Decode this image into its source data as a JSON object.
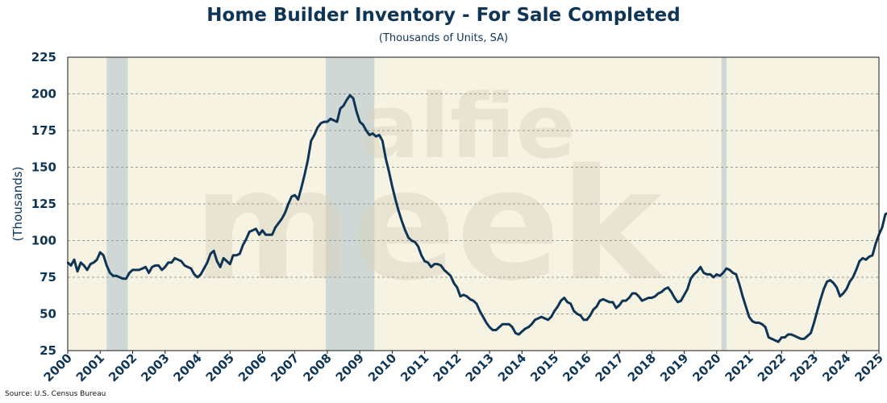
{
  "chart_data": {
    "type": "line",
    "title": "Home Builder Inventory - For Sale Completed",
    "subtitle": "(Thousands of Units, SA)",
    "ylabel": "(Thousands)",
    "xlabel": "",
    "source": "Source: U.S. Census Bureau",
    "watermark": [
      "alfie",
      "meek"
    ],
    "ylim": [
      25,
      225
    ],
    "yticks": [
      25,
      50,
      75,
      100,
      125,
      150,
      175,
      200,
      225
    ],
    "xlim": [
      2000.0,
      2025.0
    ],
    "xticks": [
      "2000",
      "2001",
      "2002",
      "2003",
      "2004",
      "2005",
      "2006",
      "2007",
      "2008",
      "2009",
      "2010",
      "2011",
      "2012",
      "2013",
      "2014",
      "2015",
      "2016",
      "2017",
      "2018",
      "2019",
      "2020",
      "2021",
      "2022",
      "2023",
      "2024",
      "2025"
    ],
    "grid": "horizontal-dashed",
    "recessions": [
      [
        2001.2,
        2001.85
      ],
      [
        2007.95,
        2009.45
      ],
      [
        2020.15,
        2020.3
      ]
    ],
    "series": [
      {
        "color": "#0f3556",
        "points": [
          [
            2000.0,
            85
          ],
          [
            2000.1,
            83
          ],
          [
            2000.2,
            87
          ],
          [
            2000.3,
            79
          ],
          [
            2000.4,
            85
          ],
          [
            2000.5,
            83
          ],
          [
            2000.6,
            80
          ],
          [
            2000.7,
            84
          ],
          [
            2000.8,
            85
          ],
          [
            2000.9,
            87
          ],
          [
            2001.0,
            92
          ],
          [
            2001.1,
            90
          ],
          [
            2001.2,
            83
          ],
          [
            2001.3,
            78
          ],
          [
            2001.4,
            76
          ],
          [
            2001.5,
            76
          ],
          [
            2001.6,
            75
          ],
          [
            2001.7,
            74
          ],
          [
            2001.8,
            74
          ],
          [
            2001.9,
            78
          ],
          [
            2002.0,
            80
          ],
          [
            2002.1,
            80
          ],
          [
            2002.2,
            80
          ],
          [
            2002.3,
            81
          ],
          [
            2002.4,
            82
          ],
          [
            2002.5,
            78
          ],
          [
            2002.6,
            82
          ],
          [
            2002.7,
            83
          ],
          [
            2002.8,
            83
          ],
          [
            2002.9,
            80
          ],
          [
            2003.0,
            82
          ],
          [
            2003.1,
            85
          ],
          [
            2003.2,
            85
          ],
          [
            2003.3,
            88
          ],
          [
            2003.4,
            87
          ],
          [
            2003.5,
            86
          ],
          [
            2003.6,
            83
          ],
          [
            2003.7,
            82
          ],
          [
            2003.8,
            81
          ],
          [
            2003.9,
            77
          ],
          [
            2004.0,
            75
          ],
          [
            2004.1,
            77
          ],
          [
            2004.2,
            81
          ],
          [
            2004.3,
            85
          ],
          [
            2004.4,
            91
          ],
          [
            2004.5,
            93
          ],
          [
            2004.6,
            86
          ],
          [
            2004.7,
            82
          ],
          [
            2004.8,
            88
          ],
          [
            2004.9,
            86
          ],
          [
            2005.0,
            84
          ],
          [
            2005.1,
            90
          ],
          [
            2005.2,
            90
          ],
          [
            2005.3,
            91
          ],
          [
            2005.4,
            97
          ],
          [
            2005.5,
            101
          ],
          [
            2005.6,
            106
          ],
          [
            2005.7,
            107
          ],
          [
            2005.8,
            108
          ],
          [
            2005.9,
            104
          ],
          [
            2006.0,
            107
          ],
          [
            2006.1,
            104
          ],
          [
            2006.2,
            104
          ],
          [
            2006.3,
            104
          ],
          [
            2006.4,
            109
          ],
          [
            2006.5,
            112
          ],
          [
            2006.6,
            115
          ],
          [
            2006.7,
            119
          ],
          [
            2006.8,
            125
          ],
          [
            2006.9,
            130
          ],
          [
            2007.0,
            131
          ],
          [
            2007.1,
            128
          ],
          [
            2007.2,
            136
          ],
          [
            2007.3,
            145
          ],
          [
            2007.4,
            155
          ],
          [
            2007.5,
            168
          ],
          [
            2007.6,
            172
          ],
          [
            2007.7,
            177
          ],
          [
            2007.8,
            180
          ],
          [
            2007.9,
            181
          ],
          [
            2008.0,
            181
          ],
          [
            2008.1,
            183
          ],
          [
            2008.2,
            182
          ],
          [
            2008.3,
            181
          ],
          [
            2008.4,
            190
          ],
          [
            2008.5,
            192
          ],
          [
            2008.6,
            196
          ],
          [
            2008.7,
            199
          ],
          [
            2008.8,
            197
          ],
          [
            2008.9,
            188
          ],
          [
            2009.0,
            181
          ],
          [
            2009.1,
            179
          ],
          [
            2009.2,
            175
          ],
          [
            2009.3,
            172
          ],
          [
            2009.4,
            173
          ],
          [
            2009.5,
            171
          ],
          [
            2009.6,
            172
          ],
          [
            2009.7,
            168
          ],
          [
            2009.8,
            156
          ],
          [
            2009.9,
            147
          ],
          [
            2010.0,
            137
          ],
          [
            2010.1,
            128
          ],
          [
            2010.2,
            120
          ],
          [
            2010.3,
            113
          ],
          [
            2010.4,
            107
          ],
          [
            2010.5,
            102
          ],
          [
            2010.6,
            100
          ],
          [
            2010.7,
            99
          ],
          [
            2010.8,
            96
          ],
          [
            2010.9,
            90
          ],
          [
            2011.0,
            86
          ],
          [
            2011.1,
            85
          ],
          [
            2011.2,
            82
          ],
          [
            2011.3,
            84
          ],
          [
            2011.4,
            84
          ],
          [
            2011.5,
            83
          ],
          [
            2011.6,
            80
          ],
          [
            2011.7,
            78
          ],
          [
            2011.8,
            76
          ],
          [
            2011.9,
            71
          ],
          [
            2012.0,
            68
          ],
          [
            2012.1,
            62
          ],
          [
            2012.2,
            63
          ],
          [
            2012.3,
            62
          ],
          [
            2012.4,
            60
          ],
          [
            2012.5,
            59
          ],
          [
            2012.6,
            57
          ],
          [
            2012.7,
            52
          ],
          [
            2012.8,
            48
          ],
          [
            2012.9,
            44
          ],
          [
            2013.0,
            41
          ],
          [
            2013.1,
            39
          ],
          [
            2013.2,
            39
          ],
          [
            2013.3,
            41
          ],
          [
            2013.4,
            43
          ],
          [
            2013.5,
            43
          ],
          [
            2013.6,
            43
          ],
          [
            2013.7,
            41
          ],
          [
            2013.8,
            37
          ],
          [
            2013.9,
            36
          ],
          [
            2014.0,
            38
          ],
          [
            2014.1,
            40
          ],
          [
            2014.2,
            41
          ],
          [
            2014.3,
            43
          ],
          [
            2014.4,
            46
          ],
          [
            2014.5,
            47
          ],
          [
            2014.6,
            48
          ],
          [
            2014.7,
            47
          ],
          [
            2014.8,
            46
          ],
          [
            2014.9,
            48
          ],
          [
            2015.0,
            52
          ],
          [
            2015.1,
            55
          ],
          [
            2015.2,
            59
          ],
          [
            2015.3,
            61
          ],
          [
            2015.4,
            58
          ],
          [
            2015.5,
            57
          ],
          [
            2015.6,
            52
          ],
          [
            2015.7,
            50
          ],
          [
            2015.8,
            49
          ],
          [
            2015.9,
            46
          ],
          [
            2016.0,
            46
          ],
          [
            2016.1,
            49
          ],
          [
            2016.2,
            53
          ],
          [
            2016.3,
            55
          ],
          [
            2016.4,
            59
          ],
          [
            2016.5,
            60
          ],
          [
            2016.6,
            59
          ],
          [
            2016.7,
            58
          ],
          [
            2016.8,
            58
          ],
          [
            2016.9,
            54
          ],
          [
            2017.0,
            56
          ],
          [
            2017.1,
            59
          ],
          [
            2017.2,
            59
          ],
          [
            2017.3,
            61
          ],
          [
            2017.4,
            64
          ],
          [
            2017.5,
            64
          ],
          [
            2017.6,
            62
          ],
          [
            2017.7,
            59
          ],
          [
            2017.8,
            60
          ],
          [
            2017.9,
            61
          ],
          [
            2018.0,
            61
          ],
          [
            2018.1,
            62
          ],
          [
            2018.2,
            64
          ],
          [
            2018.3,
            65
          ],
          [
            2018.4,
            67
          ],
          [
            2018.5,
            68
          ],
          [
            2018.6,
            65
          ],
          [
            2018.7,
            61
          ],
          [
            2018.8,
            58
          ],
          [
            2018.9,
            59
          ],
          [
            2019.0,
            63
          ],
          [
            2019.1,
            67
          ],
          [
            2019.2,
            74
          ],
          [
            2019.3,
            77
          ],
          [
            2019.4,
            79
          ],
          [
            2019.5,
            82
          ],
          [
            2019.6,
            78
          ],
          [
            2019.7,
            77
          ],
          [
            2019.8,
            77
          ],
          [
            2019.9,
            75
          ],
          [
            2020.0,
            77
          ],
          [
            2020.1,
            76
          ],
          [
            2020.2,
            78
          ],
          [
            2020.3,
            81
          ],
          [
            2020.4,
            80
          ],
          [
            2020.5,
            78
          ],
          [
            2020.6,
            77
          ],
          [
            2020.7,
            70
          ],
          [
            2020.8,
            62
          ],
          [
            2020.9,
            55
          ],
          [
            2021.0,
            48
          ],
          [
            2021.1,
            45
          ],
          [
            2021.2,
            44
          ],
          [
            2021.3,
            44
          ],
          [
            2021.4,
            43
          ],
          [
            2021.5,
            41
          ],
          [
            2021.6,
            34
          ],
          [
            2021.7,
            33
          ],
          [
            2021.8,
            32
          ],
          [
            2021.9,
            31
          ],
          [
            2022.0,
            34
          ],
          [
            2022.1,
            34
          ],
          [
            2022.2,
            36
          ],
          [
            2022.3,
            36
          ],
          [
            2022.4,
            35
          ],
          [
            2022.5,
            34
          ],
          [
            2022.6,
            33
          ],
          [
            2022.7,
            33
          ],
          [
            2022.8,
            35
          ],
          [
            2022.9,
            37
          ],
          [
            2023.0,
            44
          ],
          [
            2023.1,
            52
          ],
          [
            2023.2,
            60
          ],
          [
            2023.3,
            67
          ],
          [
            2023.4,
            72
          ],
          [
            2023.5,
            73
          ],
          [
            2023.6,
            71
          ],
          [
            2023.7,
            68
          ],
          [
            2023.8,
            62
          ],
          [
            2023.9,
            64
          ],
          [
            2024.0,
            67
          ],
          [
            2024.1,
            72
          ],
          [
            2024.2,
            75
          ],
          [
            2024.3,
            80
          ],
          [
            2024.4,
            86
          ],
          [
            2024.5,
            88
          ],
          [
            2024.6,
            87
          ],
          [
            2024.7,
            89
          ],
          [
            2024.8,
            90
          ],
          [
            2024.9,
            98
          ],
          [
            2025.0,
            104
          ],
          [
            2025.1,
            109
          ],
          [
            2025.2,
            118
          ],
          [
            2025.3,
            119
          ],
          [
            2025.4,
            118
          ],
          [
            2025.45,
            121
          ]
        ]
      }
    ]
  }
}
